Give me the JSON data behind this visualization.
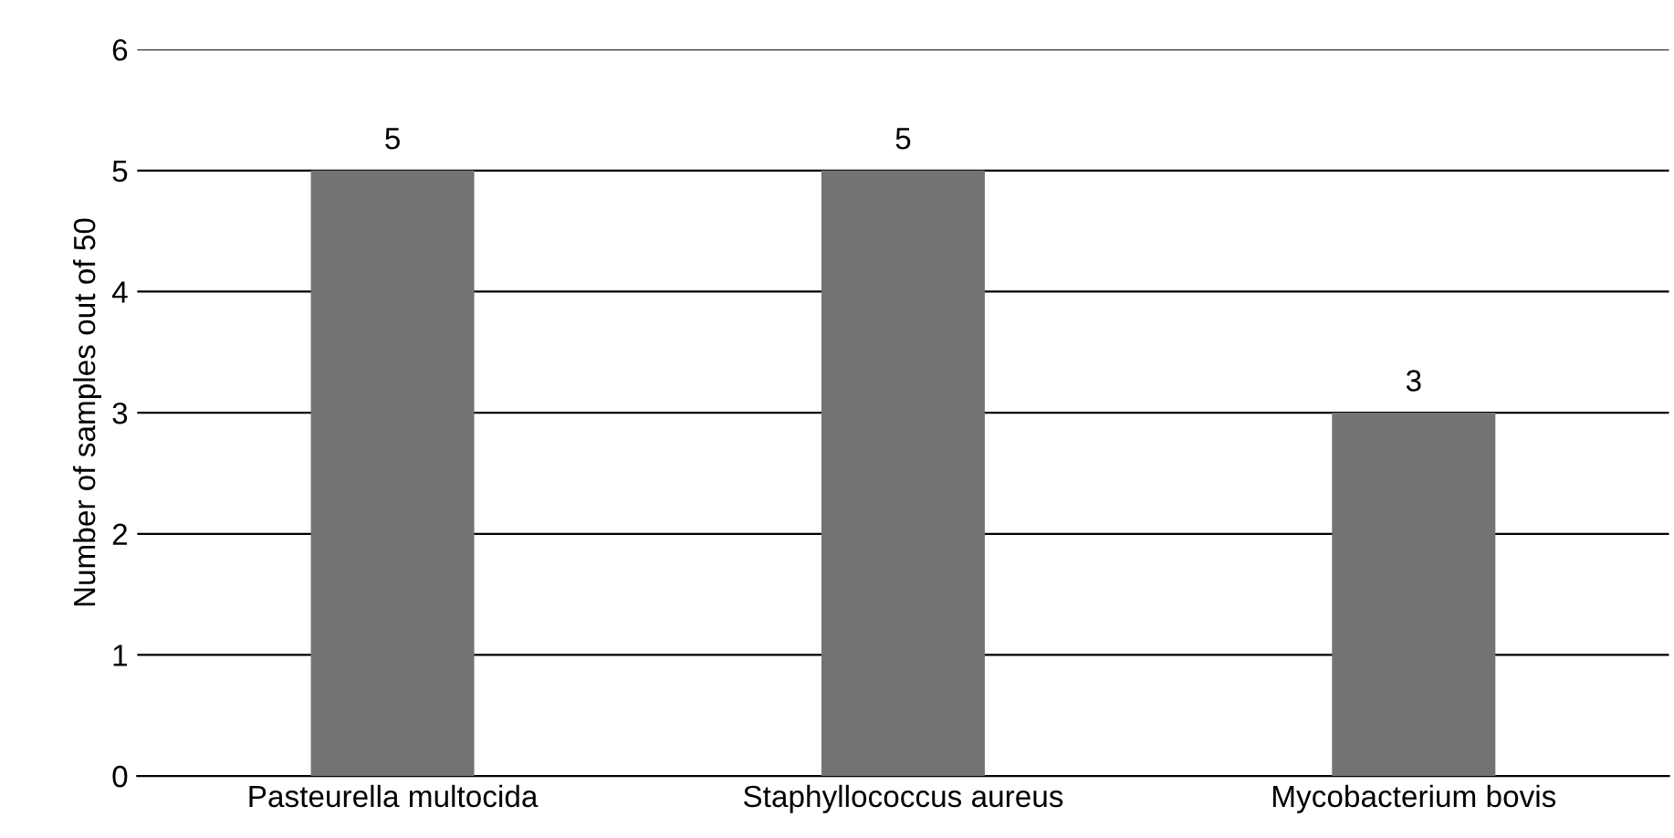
{
  "chart_data": {
    "type": "bar",
    "ylabel": "Number of samples out of 50",
    "categories": [
      "Pasteurella multocida",
      "Staphyllococcus aureus",
      "Mycobacterium bovis"
    ],
    "values": [
      5,
      5,
      3
    ],
    "color": "#737373",
    "ylim": [
      0,
      6
    ],
    "yticks": [
      0,
      1,
      2,
      3,
      4,
      5,
      6
    ],
    "grid": "y",
    "data_labels": true
  }
}
